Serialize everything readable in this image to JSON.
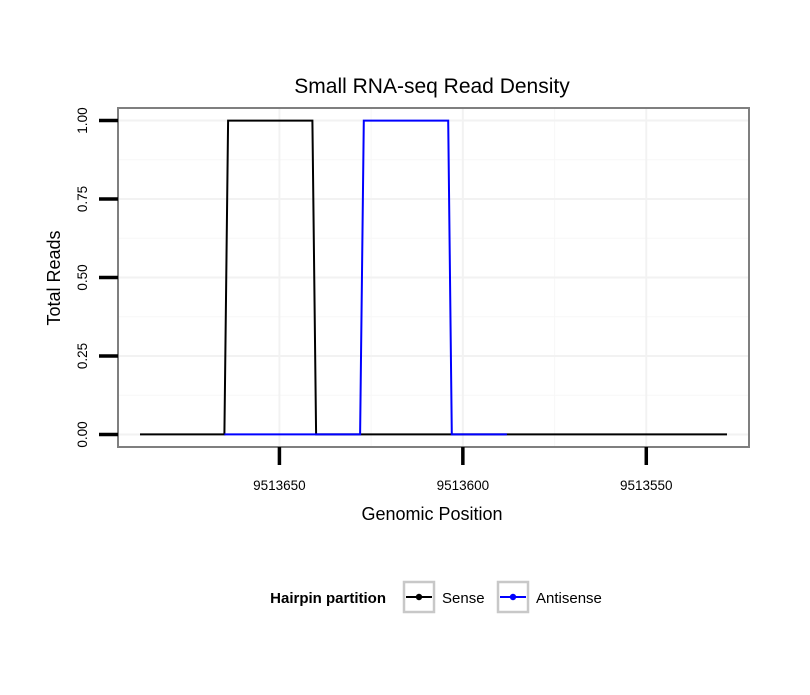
{
  "chart_data": {
    "type": "line",
    "title": "Small RNA-seq Read Density",
    "xlabel": "Genomic Position",
    "ylabel": "Total Reads",
    "x_reversed": true,
    "xlim": [
      9513694,
      9513522
    ],
    "ylim": [
      -0.04,
      1.04
    ],
    "x_ticks": [
      9513650,
      9513600,
      9513550
    ],
    "x_tick_labels": [
      "9513650",
      "9513600",
      "9513550"
    ],
    "y_ticks": [
      0,
      0.25,
      0.5,
      0.75,
      1
    ],
    "y_tick_labels": [
      "0.00",
      "0.25",
      "0.50",
      "0.75",
      "1.00"
    ],
    "grid": true,
    "legend": {
      "title": "Hairpin partition",
      "position": "bottom"
    },
    "series": [
      {
        "name": "Sense",
        "color": "#000000",
        "x": [
          9513688,
          9513665,
          9513664,
          9513641,
          9513640,
          9513528
        ],
        "y": [
          0,
          0,
          1,
          1,
          0,
          0
        ]
      },
      {
        "name": "Antisense",
        "color": "#0000ff",
        "x": [
          9513665,
          9513640,
          9513628,
          9513627,
          9513604,
          9513603,
          9513588
        ],
        "y": [
          0,
          0,
          0,
          1,
          1,
          0,
          0
        ]
      }
    ]
  }
}
